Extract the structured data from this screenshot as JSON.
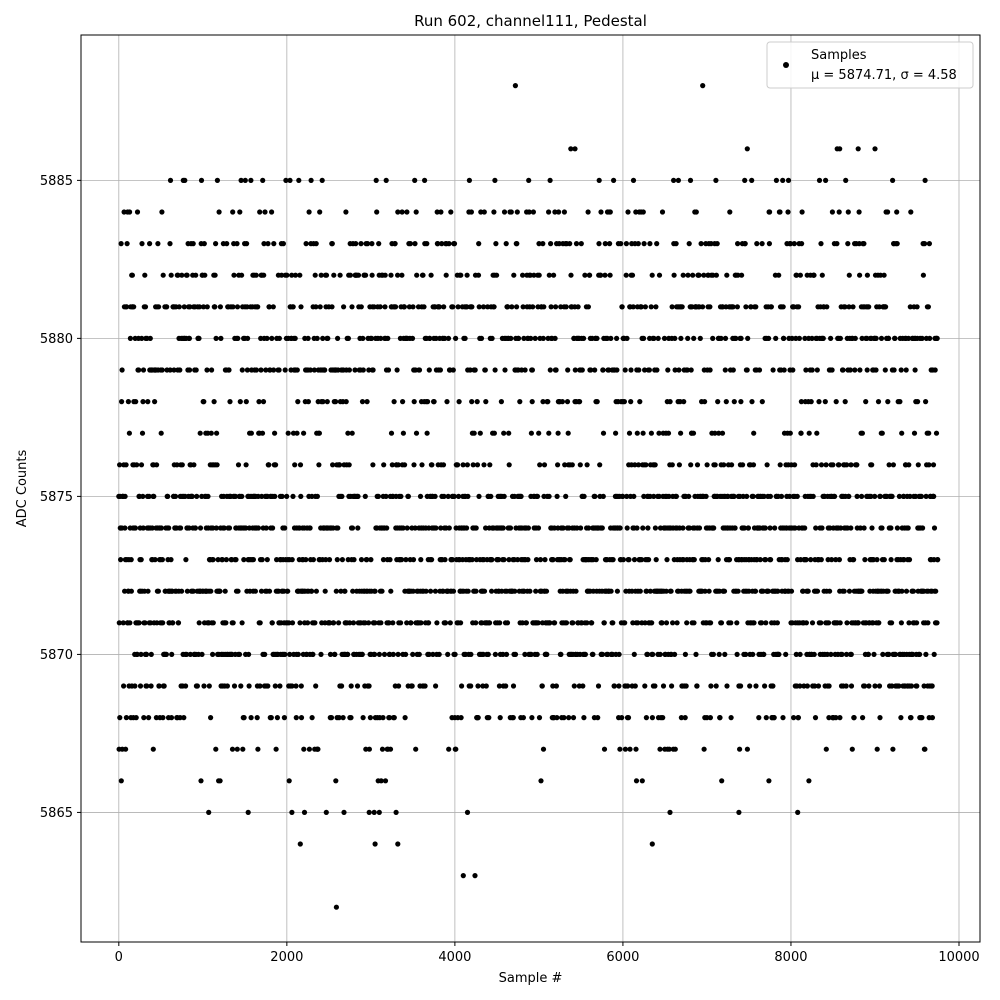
{
  "chart_data": {
    "type": "scatter",
    "title": "Run 602, channel111, Pedestal",
    "xlabel": "Sample #",
    "ylabel": "ADC Counts",
    "xlim": [
      -450,
      10250
    ],
    "ylim": [
      5860.9,
      5889.6
    ],
    "xticks": [
      0,
      2000,
      4000,
      6000,
      8000,
      10000
    ],
    "yticks": [
      5865,
      5870,
      5875,
      5880,
      5885
    ],
    "grid": true,
    "legend_position": "top-right",
    "marker_color": "#000000",
    "n_samples": 9750,
    "legend": {
      "label": "Samples",
      "stats": "μ = 5874.71, σ = 4.58"
    },
    "stats": {
      "mean": 5874.71,
      "sigma": 4.58
    },
    "outliers": [
      {
        "x": 2590,
        "y": 5862
      },
      {
        "x": 4100,
        "y": 5863
      },
      {
        "x": 4240,
        "y": 5863
      },
      {
        "x": 2160,
        "y": 5864
      },
      {
        "x": 3050,
        "y": 5864
      },
      {
        "x": 3320,
        "y": 5864
      },
      {
        "x": 6350,
        "y": 5864
      },
      {
        "x": 1070,
        "y": 5865
      },
      {
        "x": 1540,
        "y": 5865
      },
      {
        "x": 2060,
        "y": 5865
      },
      {
        "x": 2210,
        "y": 5865
      },
      {
        "x": 2470,
        "y": 5865
      },
      {
        "x": 2680,
        "y": 5865
      },
      {
        "x": 2980,
        "y": 5865
      },
      {
        "x": 3040,
        "y": 5865
      },
      {
        "x": 3100,
        "y": 5865
      },
      {
        "x": 3300,
        "y": 5865
      },
      {
        "x": 4150,
        "y": 5865
      },
      {
        "x": 6560,
        "y": 5865
      },
      {
        "x": 7380,
        "y": 5865
      },
      {
        "x": 8080,
        "y": 5865
      },
      {
        "x": 4720,
        "y": 5888
      },
      {
        "x": 6950,
        "y": 5888
      },
      {
        "x": 5380,
        "y": 5886
      },
      {
        "x": 5430,
        "y": 5886
      },
      {
        "x": 7480,
        "y": 5886
      },
      {
        "x": 8550,
        "y": 5886
      },
      {
        "x": 8580,
        "y": 5886
      },
      {
        "x": 8800,
        "y": 5886
      },
      {
        "x": 9000,
        "y": 5886
      }
    ],
    "level_weights": [
      {
        "y": 5866,
        "weight": 0.3
      },
      {
        "y": 5867,
        "weight": 1.0
      },
      {
        "y": 5868,
        "weight": 2.5
      },
      {
        "y": 5869,
        "weight": 3.2
      },
      {
        "y": 5870,
        "weight": 4.8
      },
      {
        "y": 5871,
        "weight": 6.0
      },
      {
        "y": 5872,
        "weight": 6.8
      },
      {
        "y": 5873,
        "weight": 5.8
      },
      {
        "y": 5874,
        "weight": 6.2
      },
      {
        "y": 5875,
        "weight": 5.6
      },
      {
        "y": 5876,
        "weight": 3.0
      },
      {
        "y": 5877,
        "weight": 1.6
      },
      {
        "y": 5878,
        "weight": 2.2
      },
      {
        "y": 5879,
        "weight": 3.8
      },
      {
        "y": 5880,
        "weight": 5.2
      },
      {
        "y": 5881,
        "weight": 5.0
      },
      {
        "y": 5882,
        "weight": 2.8
      },
      {
        "y": 5883,
        "weight": 2.5
      },
      {
        "y": 5884,
        "weight": 1.6
      },
      {
        "y": 5885,
        "weight": 0.9
      }
    ]
  }
}
